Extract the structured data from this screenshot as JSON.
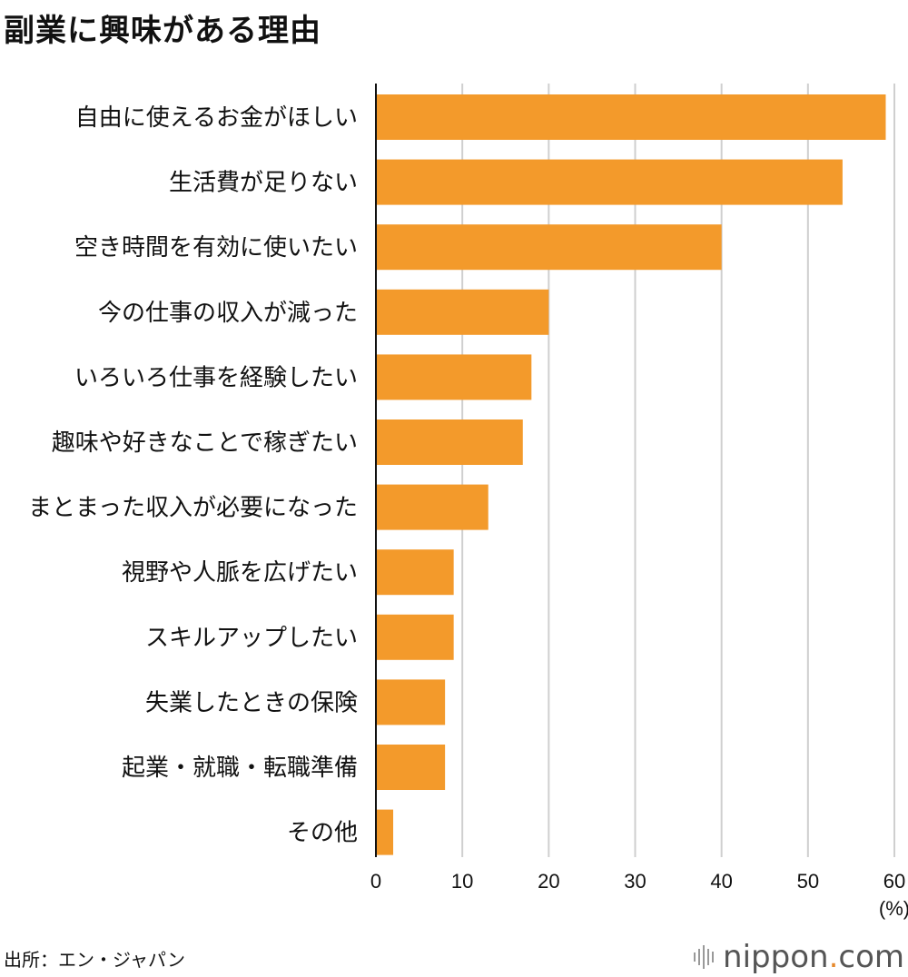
{
  "title": "副業に興味がある理由",
  "source": "出所：エン・ジャパン",
  "brand": {
    "name": "nippon",
    "dot": ".",
    "tld": "com"
  },
  "colors": {
    "bar": "#f39a2b",
    "grid": "#cfcfcf",
    "axis": "#111111"
  },
  "chart_data": {
    "type": "bar",
    "orientation": "horizontal",
    "categories": [
      "自由に使えるお金がほしい",
      "生活費が足りない",
      "空き時間を有効に使いたい",
      "今の仕事の収入が減った",
      "いろいろ仕事を経験したい",
      "趣味や好きなことで稼ぎたい",
      "まとまった収入が必要になった",
      "視野や人脈を広げたい",
      "スキルアップしたい",
      "失業したときの保険",
      "起業・就職・転職準備",
      "その他"
    ],
    "values": [
      59,
      54,
      40,
      20,
      18,
      17,
      13,
      9,
      9,
      8,
      8,
      2
    ],
    "xlim": [
      0,
      60
    ],
    "xticks": [
      "0",
      "10",
      "20",
      "30",
      "40",
      "50",
      "60"
    ],
    "unit": "(%)",
    "grid": true
  }
}
